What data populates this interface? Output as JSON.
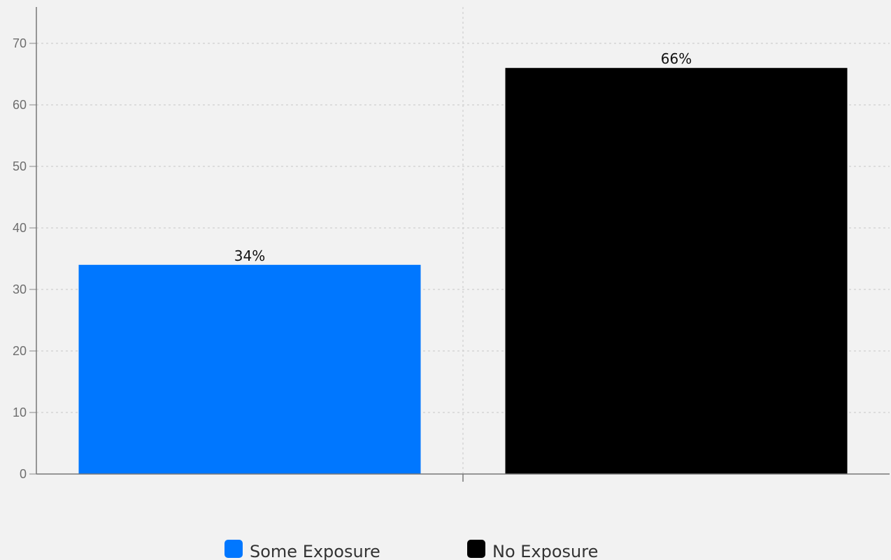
{
  "chart_data": {
    "type": "bar",
    "categories": [
      "Some Exposure",
      "No Exposure"
    ],
    "values": [
      34,
      66
    ],
    "data_labels": [
      "34%",
      "66%"
    ],
    "colors": [
      "#0077ff",
      "#000000"
    ],
    "ylim": [
      0,
      75
    ],
    "yticks": [
      0,
      10,
      20,
      30,
      40,
      50,
      60,
      70
    ],
    "grid": true,
    "legend": {
      "placement": "bottom",
      "entries": [
        "Some Exposure",
        "No Exposure"
      ]
    }
  }
}
